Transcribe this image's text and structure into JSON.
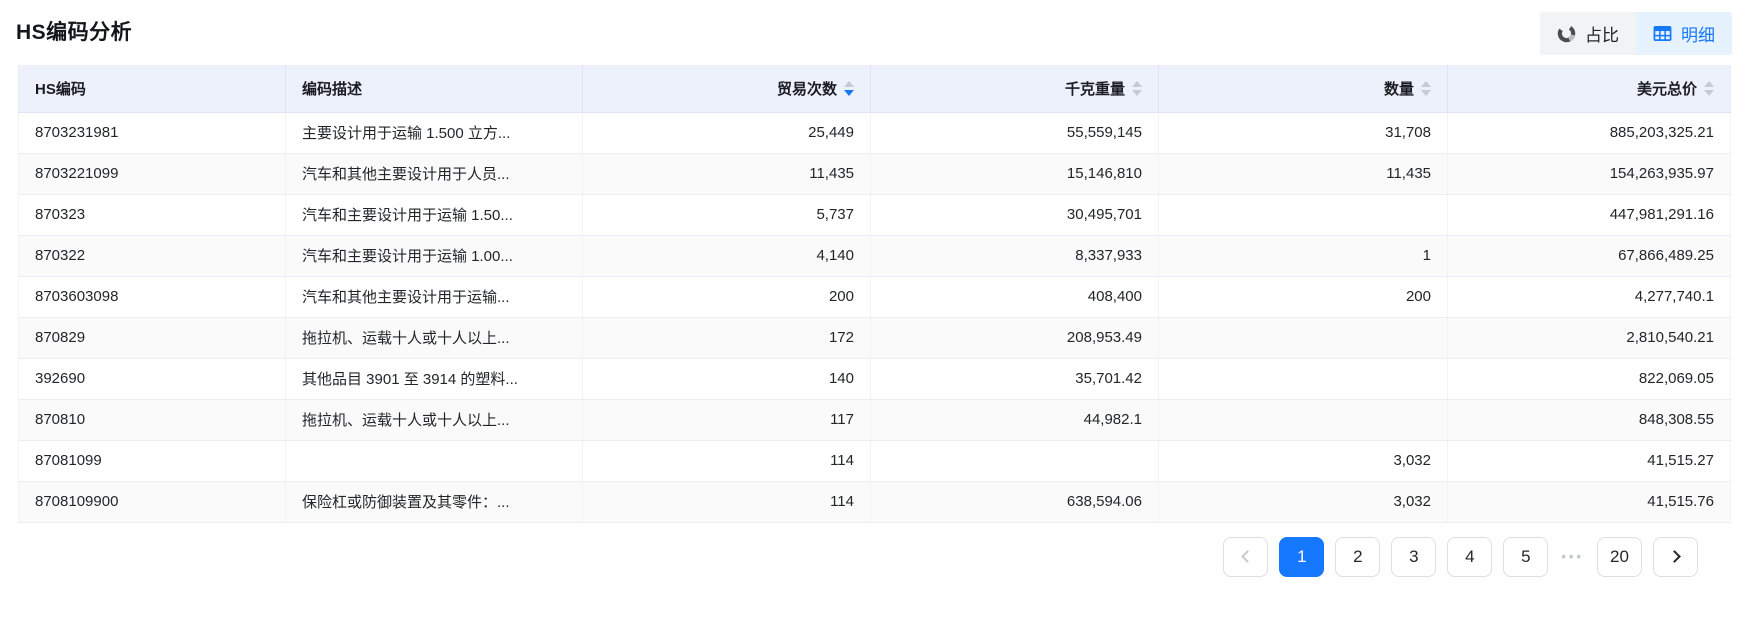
{
  "page": {
    "title": "HS编码分析"
  },
  "toolbar": {
    "proportion_button": {
      "label": "占比",
      "icon": "pie-chart-icon",
      "active": false
    },
    "detail_button": {
      "label": "明细",
      "icon": "table-icon",
      "active": true
    }
  },
  "table": {
    "columns": [
      {
        "name": "hs-code",
        "label": "HS编码",
        "align": "left",
        "sortable": false,
        "sort": null
      },
      {
        "name": "description",
        "label": "编码描述",
        "align": "left",
        "sortable": false,
        "sort": null
      },
      {
        "name": "trade-count",
        "label": "贸易次数",
        "align": "right",
        "sortable": true,
        "sort": "desc"
      },
      {
        "name": "kg-weight",
        "label": "千克重量",
        "align": "right",
        "sortable": true,
        "sort": null
      },
      {
        "name": "quantity",
        "label": "数量",
        "align": "right",
        "sortable": true,
        "sort": null
      },
      {
        "name": "usd-total",
        "label": "美元总价",
        "align": "right",
        "sortable": true,
        "sort": null
      }
    ],
    "rows": [
      [
        "8703231981",
        "主要设计用于运输 1.500 立方...",
        "25,449",
        "55,559,145",
        "31,708",
        "885,203,325.21"
      ],
      [
        "8703221099",
        "汽车和其他主要设计用于人员...",
        "11,435",
        "15,146,810",
        "11,435",
        "154,263,935.97"
      ],
      [
        "870323",
        "汽车和主要设计用于运输 1.50...",
        "5,737",
        "30,495,701",
        "",
        "447,981,291.16"
      ],
      [
        "870322",
        "汽车和主要设计用于运输 1.00...",
        "4,140",
        "8,337,933",
        "1",
        "67,866,489.25"
      ],
      [
        "8703603098",
        "汽车和其他主要设计用于运输...",
        "200",
        "408,400",
        "200",
        "4,277,740.1"
      ],
      [
        "870829",
        "拖拉机、运载十人或十人以上...",
        "172",
        "208,953.49",
        "",
        "2,810,540.21"
      ],
      [
        "392690",
        "其他品目 3901 至 3914 的塑料...",
        "140",
        "35,701.42",
        "",
        "822,069.05"
      ],
      [
        "870810",
        "拖拉机、运载十人或十人以上...",
        "117",
        "44,982.1",
        "",
        "848,308.55"
      ],
      [
        "87081099",
        "",
        "114",
        "",
        "3,032",
        "41,515.27"
      ],
      [
        "8708109900",
        "保险杠或防御装置及其零件：...",
        "114",
        "638,594.06",
        "3,032",
        "41,515.76"
      ]
    ]
  },
  "pagination": {
    "pages": [
      "1",
      "2",
      "3",
      "4",
      "5",
      "ellipsis",
      "20"
    ],
    "active_page": "1",
    "ellipsis_label": "•••",
    "prev_disabled": true
  },
  "colors": {
    "accent_blue": "#1677ff",
    "header_background": "#edf1fc",
    "detail_button_background": "#e6f2fe",
    "proportion_button_background": "#f2f3f5",
    "zebra_row": "#fafafa",
    "active_page_background": "#1677ff"
  }
}
